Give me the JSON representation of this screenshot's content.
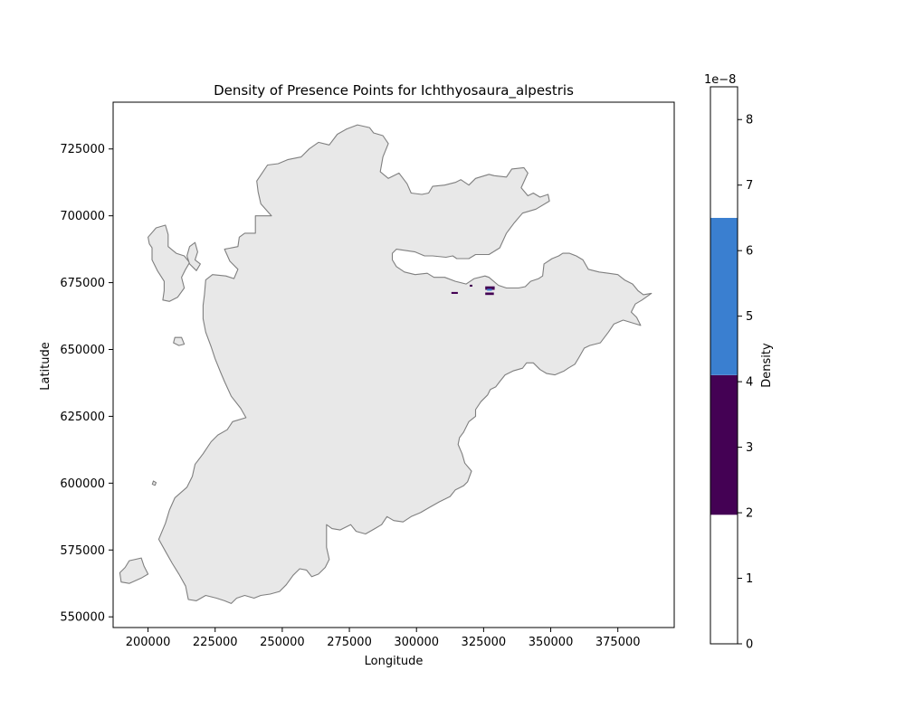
{
  "chart_data": {
    "type": "heatmap",
    "title": "Density of Presence Points for Ichthyosaura_alpestris",
    "xlabel": "Longitude",
    "ylabel": "Latitude",
    "xlim": [
      187000,
      396000
    ],
    "ylim": [
      546000,
      742500
    ],
    "x_ticks": [
      200000,
      225000,
      250000,
      275000,
      300000,
      325000,
      350000,
      375000
    ],
    "x_tick_labels": [
      "200000",
      "225000",
      "250000",
      "275000",
      "300000",
      "325000",
      "350000",
      "375000"
    ],
    "y_ticks": [
      550000,
      575000,
      600000,
      625000,
      650000,
      675000,
      700000,
      725000
    ],
    "y_tick_labels": [
      "550000",
      "575000",
      "600000",
      "625000",
      "650000",
      "675000",
      "700000",
      "725000"
    ],
    "grid": false,
    "land_fill_color": "#e8e8e8",
    "land_edge_color": "#7f7f7f",
    "colorbar": {
      "label": "Density",
      "offset_label": "1e−8",
      "range": [
        0,
        8.5
      ],
      "ticks": [
        0,
        1,
        2,
        3,
        4,
        5,
        6,
        7,
        8
      ],
      "tick_labels": [
        "0",
        "1",
        "2",
        "3",
        "4",
        "5",
        "6",
        "7",
        "8"
      ],
      "bins": [
        {
          "from": 0,
          "to": 1.97,
          "color": "#ffffff"
        },
        {
          "from": 1.97,
          "to": 4.1,
          "color": "#440154"
        },
        {
          "from": 4.1,
          "to": 6.5,
          "color": "#3a7fd0"
        },
        {
          "from": 6.5,
          "to": 8.5,
          "color": "#ffffff"
        }
      ]
    },
    "density_cells": [
      {
        "x": 313000,
        "y": 670800,
        "w": 2400,
        "h": 700,
        "value": 3.0
      },
      {
        "x": 319800,
        "y": 673500,
        "w": 1000,
        "h": 700,
        "value": 3.0
      },
      {
        "x": 325600,
        "y": 672300,
        "w": 3500,
        "h": 1300,
        "value": 3.0
      },
      {
        "x": 325600,
        "y": 670400,
        "w": 3200,
        "h": 900,
        "value": 3.0
      },
      {
        "x": 326300,
        "y": 672000,
        "w": 1800,
        "h": 700,
        "value": 5.0
      }
    ],
    "land_polygons": [
      {
        "name": "mainland",
        "points": [
          [
            215000,
            556500
          ],
          [
            214000,
            561500
          ],
          [
            211500,
            566000
          ],
          [
            209000,
            570000
          ],
          [
            206500,
            574500
          ],
          [
            204000,
            579000
          ],
          [
            206500,
            585000
          ],
          [
            208000,
            590000
          ],
          [
            210000,
            594500
          ],
          [
            214500,
            598500
          ],
          [
            216500,
            602500
          ],
          [
            217500,
            607000
          ],
          [
            220500,
            611000
          ],
          [
            223500,
            615500
          ],
          [
            226000,
            618000
          ],
          [
            229500,
            620000
          ],
          [
            231500,
            623000
          ],
          [
            236500,
            624500
          ],
          [
            234500,
            628000
          ],
          [
            231000,
            632500
          ],
          [
            228500,
            638000
          ],
          [
            227000,
            641500
          ],
          [
            225000,
            646500
          ],
          [
            223500,
            651000
          ],
          [
            221500,
            656500
          ],
          [
            220500,
            661500
          ],
          [
            220500,
            666500
          ],
          [
            221000,
            670500
          ],
          [
            221500,
            676000
          ],
          [
            224000,
            678000
          ],
          [
            229000,
            677500
          ],
          [
            232000,
            676500
          ],
          [
            233500,
            680000
          ],
          [
            230500,
            683000
          ],
          [
            228500,
            687500
          ],
          [
            233500,
            688500
          ],
          [
            234000,
            692000
          ],
          [
            236000,
            693500
          ],
          [
            240000,
            693500
          ],
          [
            240000,
            700000
          ],
          [
            246000,
            700000
          ],
          [
            242000,
            704500
          ],
          [
            241000,
            709000
          ],
          [
            240500,
            713000
          ],
          [
            242500,
            716000
          ],
          [
            244500,
            719000
          ],
          [
            248500,
            719500
          ],
          [
            252000,
            721000
          ],
          [
            257000,
            722000
          ],
          [
            260000,
            725000
          ],
          [
            263500,
            727500
          ],
          [
            267500,
            726500
          ],
          [
            270500,
            730500
          ],
          [
            274000,
            732500
          ],
          [
            278000,
            734000
          ],
          [
            282500,
            733000
          ],
          [
            284000,
            731000
          ],
          [
            287500,
            730000
          ],
          [
            289500,
            727000
          ],
          [
            287500,
            722000
          ],
          [
            286500,
            716500
          ],
          [
            289500,
            714000
          ],
          [
            293500,
            716000
          ],
          [
            296500,
            712000
          ],
          [
            298000,
            708500
          ],
          [
            302000,
            708000
          ],
          [
            304500,
            708500
          ],
          [
            306000,
            711000
          ],
          [
            310500,
            711500
          ],
          [
            314500,
            712500
          ],
          [
            316500,
            713500
          ],
          [
            319500,
            711500
          ],
          [
            322000,
            714000
          ],
          [
            327000,
            715500
          ],
          [
            329000,
            715000
          ],
          [
            333500,
            714500
          ],
          [
            335500,
            717500
          ],
          [
            340000,
            718000
          ],
          [
            341500,
            716000
          ],
          [
            339000,
            710500
          ],
          [
            341500,
            707500
          ],
          [
            343500,
            708500
          ],
          [
            346000,
            707000
          ],
          [
            349000,
            708000
          ],
          [
            349500,
            705500
          ],
          [
            344500,
            702500
          ],
          [
            339500,
            701000
          ],
          [
            336500,
            697500
          ],
          [
            333500,
            693500
          ],
          [
            331000,
            688000
          ],
          [
            327000,
            685500
          ],
          [
            322000,
            685500
          ],
          [
            319500,
            684000
          ],
          [
            315000,
            684000
          ],
          [
            313500,
            685000
          ],
          [
            311000,
            684500
          ],
          [
            306000,
            685000
          ],
          [
            303000,
            685000
          ],
          [
            299500,
            686500
          ],
          [
            292500,
            687500
          ],
          [
            291000,
            686000
          ],
          [
            291000,
            683500
          ],
          [
            292500,
            681000
          ],
          [
            295500,
            679000
          ],
          [
            299500,
            678000
          ],
          [
            304000,
            678500
          ],
          [
            306500,
            677000
          ],
          [
            310500,
            677000
          ],
          [
            314500,
            675500
          ],
          [
            318500,
            674500
          ],
          [
            321500,
            676500
          ],
          [
            325500,
            677500
          ],
          [
            327000,
            677000
          ],
          [
            330500,
            674000
          ],
          [
            333500,
            673000
          ],
          [
            335500,
            673000
          ],
          [
            338000,
            673000
          ],
          [
            340500,
            673500
          ],
          [
            342500,
            675500
          ],
          [
            345500,
            676500
          ],
          [
            347000,
            677500
          ],
          [
            347500,
            682000
          ],
          [
            350500,
            684000
          ],
          [
            353000,
            685000
          ],
          [
            354500,
            686000
          ],
          [
            357000,
            686000
          ],
          [
            359500,
            685000
          ],
          [
            362000,
            683500
          ],
          [
            364000,
            680000
          ],
          [
            368000,
            679000
          ],
          [
            371500,
            678500
          ],
          [
            375000,
            678000
          ],
          [
            377500,
            676000
          ],
          [
            380500,
            674500
          ],
          [
            382500,
            672000
          ],
          [
            384500,
            670500
          ],
          [
            387500,
            671000
          ],
          [
            384000,
            668500
          ],
          [
            381500,
            667000
          ],
          [
            380000,
            664000
          ],
          [
            382000,
            662000
          ],
          [
            383500,
            659000
          ],
          [
            377000,
            661000
          ],
          [
            373500,
            659500
          ],
          [
            371500,
            656500
          ],
          [
            368500,
            652500
          ],
          [
            364500,
            651500
          ],
          [
            362500,
            650500
          ],
          [
            360500,
            647000
          ],
          [
            359000,
            644500
          ],
          [
            356500,
            643000
          ],
          [
            355000,
            642000
          ],
          [
            351500,
            640500
          ],
          [
            348500,
            641000
          ],
          [
            346000,
            642500
          ],
          [
            343500,
            645000
          ],
          [
            341000,
            645000
          ],
          [
            339500,
            643000
          ],
          [
            336000,
            642000
          ],
          [
            333000,
            640500
          ],
          [
            331000,
            638000
          ],
          [
            329500,
            636000
          ],
          [
            327500,
            635000
          ],
          [
            326500,
            633000
          ],
          [
            324000,
            630500
          ],
          [
            322000,
            627500
          ],
          [
            322000,
            625000
          ],
          [
            319500,
            623000
          ],
          [
            317500,
            619000
          ],
          [
            316000,
            617000
          ],
          [
            315500,
            614500
          ],
          [
            317000,
            611000
          ],
          [
            318000,
            607500
          ],
          [
            320500,
            604500
          ],
          [
            319000,
            600500
          ],
          [
            317500,
            599000
          ],
          [
            314500,
            597500
          ],
          [
            312500,
            595000
          ],
          [
            308500,
            593000
          ],
          [
            305000,
            591000
          ],
          [
            301500,
            589000
          ],
          [
            298000,
            587500
          ],
          [
            295000,
            585500
          ],
          [
            291500,
            586000
          ],
          [
            289000,
            587500
          ],
          [
            287000,
            584500
          ],
          [
            284500,
            583000
          ],
          [
            281000,
            581000
          ],
          [
            277500,
            582000
          ],
          [
            275500,
            584500
          ],
          [
            271500,
            582500
          ],
          [
            268500,
            583000
          ],
          [
            266500,
            584500
          ],
          [
            266500,
            576000
          ],
          [
            267500,
            571500
          ],
          [
            266000,
            568500
          ],
          [
            263500,
            566000
          ],
          [
            261000,
            565000
          ],
          [
            259000,
            567500
          ],
          [
            256500,
            568000
          ],
          [
            254000,
            565500
          ],
          [
            251500,
            562000
          ],
          [
            249000,
            559500
          ],
          [
            245500,
            558500
          ],
          [
            242000,
            558000
          ],
          [
            239500,
            557000
          ],
          [
            236000,
            558000
          ],
          [
            233000,
            557000
          ],
          [
            231000,
            555000
          ],
          [
            228500,
            556000
          ],
          [
            225500,
            557000
          ],
          [
            221500,
            558000
          ],
          [
            218000,
            556000
          ]
        ]
      },
      {
        "name": "north-west-island",
        "points": [
          [
            207500,
            688500
          ],
          [
            210500,
            686000
          ],
          [
            213500,
            685000
          ],
          [
            215500,
            682500
          ],
          [
            214000,
            680000
          ],
          [
            212500,
            677000
          ],
          [
            213500,
            673000
          ],
          [
            211000,
            669500
          ],
          [
            208000,
            668000
          ],
          [
            205500,
            668500
          ],
          [
            206000,
            672000
          ],
          [
            206000,
            675500
          ],
          [
            203500,
            679500
          ],
          [
            201500,
            683500
          ],
          [
            201500,
            688000
          ],
          [
            200500,
            689500
          ],
          [
            200000,
            692000
          ],
          [
            203000,
            695500
          ],
          [
            206500,
            696500
          ],
          [
            207500,
            693000
          ]
        ]
      },
      {
        "name": "small-island-north",
        "points": [
          [
            217500,
            690000
          ],
          [
            218500,
            686500
          ],
          [
            217500,
            683500
          ],
          [
            219500,
            682000
          ],
          [
            218000,
            679500
          ],
          [
            215500,
            682000
          ],
          [
            214500,
            685000
          ],
          [
            215500,
            688500
          ]
        ]
      },
      {
        "name": "islet-west",
        "points": [
          [
            212500,
            654500
          ],
          [
            213500,
            652000
          ],
          [
            211500,
            651500
          ],
          [
            209500,
            652500
          ],
          [
            210000,
            654500
          ]
        ]
      },
      {
        "name": "south-west-island",
        "points": [
          [
            197500,
            572000
          ],
          [
            193000,
            571000
          ],
          [
            191500,
            568500
          ],
          [
            189500,
            566500
          ],
          [
            190000,
            563000
          ],
          [
            193000,
            562500
          ],
          [
            197500,
            564500
          ],
          [
            200000,
            566000
          ],
          [
            198500,
            569000
          ]
        ]
      },
      {
        "name": "islet-south",
        "points": [
          [
            203000,
            600200
          ],
          [
            202600,
            599200
          ],
          [
            201600,
            599600
          ],
          [
            202000,
            600800
          ]
        ]
      }
    ]
  }
}
